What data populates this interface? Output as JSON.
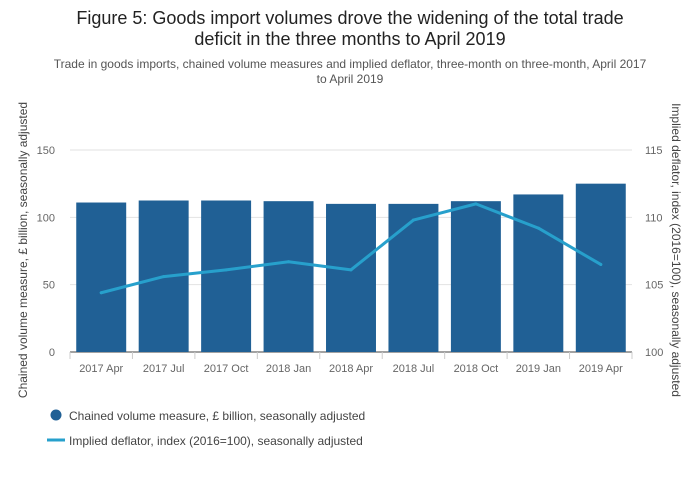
{
  "chart_data": {
    "type": "bar",
    "title_lines": [
      "Figure 5: Goods import volumes drove the widening of the total trade",
      "deficit in the three months to April 2019"
    ],
    "subtitle_lines": [
      "Trade in goods imports, chained volume measures and implied deflator, three-month on three-month, April 2017",
      "to April 2019"
    ],
    "categories": [
      "2017 Apr",
      "2017 Jul",
      "2017 Oct",
      "2018 Jan",
      "2018 Apr",
      "2018 Jul",
      "2018 Oct",
      "2019 Jan",
      "2019 Apr"
    ],
    "series": [
      {
        "name": "Chained volume measure, £ billion, seasonally adjusted",
        "type": "bar",
        "axis": "left",
        "color": "#206095",
        "values": [
          111,
          112.5,
          112.5,
          112,
          110,
          110,
          112,
          117,
          125
        ]
      },
      {
        "name": "Implied deflator, index (2016=100), seasonally adjusted",
        "type": "line",
        "axis": "right",
        "color": "#27a0cc",
        "values": [
          104.4,
          105.6,
          106.1,
          106.7,
          106.1,
          109.8,
          111.0,
          109.2,
          106.5
        ]
      }
    ],
    "ylabel_left": "Chained volume measure, £ billion, seasonally adjusted",
    "ylabel_right": "Implied deflator, index (2016=100), seasonally adjusted",
    "ylim_left": [
      0,
      150
    ],
    "yticks_left": [
      "0",
      "50",
      "100",
      "150"
    ],
    "ylim_right": [
      100,
      115
    ],
    "yticks_right": [
      "100",
      "105",
      "110",
      "115"
    ],
    "grid": true,
    "legend_position": "bottom-left"
  }
}
